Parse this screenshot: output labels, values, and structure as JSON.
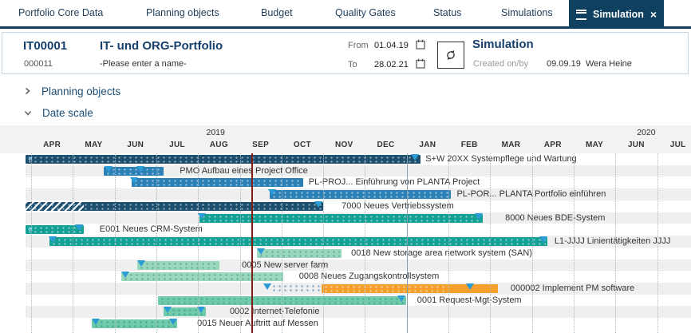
{
  "nav": {
    "items": [
      "Portfolio Core Data",
      "Planning objects",
      "Budget",
      "Quality Gates",
      "Status",
      "Simulations"
    ],
    "active_tab": {
      "label": "Simulation",
      "close": "×"
    }
  },
  "header": {
    "portfolio_id": "IT00001",
    "portfolio_title": "IT- und ORG-Portfolio",
    "sub_id": "000011",
    "name_placeholder": "-Please enter a name-",
    "from_label": "From",
    "from_value": "01.04.19",
    "to_label": "To",
    "to_value": "28.02.21",
    "simulation_title": "Simulation",
    "created_label": "Created on/by",
    "created_date": "09.09.19",
    "created_by": "Wera Heine"
  },
  "sections": [
    {
      "label": "Planning objects",
      "state": "collapsed"
    },
    {
      "label": "Date scale",
      "state": "expanded"
    }
  ],
  "colors": {
    "navy": "#1d4f6e",
    "blue": "#2b80b5",
    "teal": "#13a095",
    "mint": "#6fcbab",
    "palemint": "#99d8bd",
    "orange": "#f5a02d",
    "milestone": "#2a9bd5",
    "today_line": "#7e1d15",
    "tab_bg": "#0f405f"
  },
  "chart_data": {
    "type": "gantt",
    "timeline": {
      "months": [
        "APR",
        "MAY",
        "JUN",
        "JUL",
        "AUG",
        "SEP",
        "OCT",
        "NOV",
        "DEC",
        "JAN",
        "FEB",
        "MAR",
        "APR",
        "MAY",
        "JUN",
        "JUL"
      ],
      "years": [
        {
          "label": "2019",
          "month_pos": 4.42
        },
        {
          "label": "2020",
          "month_pos": 14.74
        }
      ],
      "origin": "01.04.2019",
      "today_month_pos": 5.3,
      "year_divider_month_pos": 9
    },
    "rows": [
      {
        "label": "S+W 20XX Systempflege und Wartung",
        "color": "navy",
        "start": -0.15,
        "end": 9.33,
        "clipped_left": true,
        "milestones": [
          9.2
        ],
        "label_pos": 9.45
      },
      {
        "label": "PMO Aufbau eines Project Office",
        "color": "blue",
        "start": 1.74,
        "end": 3.17,
        "milestones": [
          1.85,
          2.62
        ],
        "label_pos": 3.56
      },
      {
        "label": "PL-PROJ... Einführung von PLANTA Project",
        "color": "blue",
        "start": 2.41,
        "end": 6.52,
        "milestones": [
          2.47
        ],
        "label_pos": 6.65
      },
      {
        "label": "PL-POR... PLANTA Portfolio einführen",
        "color": "blue",
        "start": 5.72,
        "end": 10.06,
        "milestones": [
          5.78
        ],
        "label_pos": 10.2
      },
      {
        "label": "7000 Neues Vertriebssystem",
        "color": "navy",
        "start": -0.15,
        "end": 7.0,
        "hatch_until": 1.26,
        "milestones": [
          6.88
        ],
        "label_pos": 7.44
      },
      {
        "label": "8000 Neues BDE-System",
        "color": "teal",
        "start": 4.03,
        "end": 10.82,
        "milestones": [
          4.1,
          10.72
        ],
        "label_pos": 11.36
      },
      {
        "label": "E001 Neues CRM-System",
        "color": "teal",
        "start": -0.15,
        "end": 1.26,
        "clipped_left": true,
        "milestones": [
          1.15
        ],
        "label_pos": 1.64
      },
      {
        "label": "L1-JJJJ Linientätigkeiten JJJJ",
        "color": "teal",
        "start": 0.44,
        "end": 12.37,
        "milestones": [
          0.52,
          12.27
        ],
        "label_pos": 12.54
      },
      {
        "label": "0018 New storage area network system (SAN)",
        "color": "palemint",
        "start": 5.41,
        "end": 7.44,
        "milestones": [
          5.5
        ],
        "label_pos": 7.67
      },
      {
        "label": "0005 New server farm",
        "color": "palemint",
        "start": 2.54,
        "end": 4.51,
        "milestones": [
          2.63
        ],
        "label_pos": 5.05
      },
      {
        "label": "0008 Neues Zugangskontrollsystem",
        "color": "palemint",
        "start": 2.16,
        "end": 6.04,
        "milestones": [
          2.25
        ],
        "label_pos": 6.42
      },
      {
        "label": "000002 Implement PM software",
        "color": "orange",
        "start": 6.96,
        "end": 11.19,
        "pre_dots": {
          "start": 5.75,
          "end": 6.96
        },
        "dots_overlay_until": 9.96,
        "milestones": [
          5.66,
          10.52
        ],
        "label_pos": 11.49
      },
      {
        "label": "0001 Request-Mgt-System",
        "color": "mint",
        "start": 3.04,
        "end": 8.99,
        "milestones": [
          8.88
        ],
        "label_pos": 9.25
      },
      {
        "label": "0002 Internet-Telefonie",
        "color": "mint",
        "start": 3.17,
        "end": 4.19,
        "milestones": [
          3.27,
          4.08
        ],
        "label_pos": 4.76
      },
      {
        "label": "0015 Neuer Auftritt auf Messen",
        "color": "mint",
        "start": 1.45,
        "end": 3.5,
        "milestones": [
          1.55,
          3.4
        ],
        "label_pos": 3.98
      }
    ]
  }
}
